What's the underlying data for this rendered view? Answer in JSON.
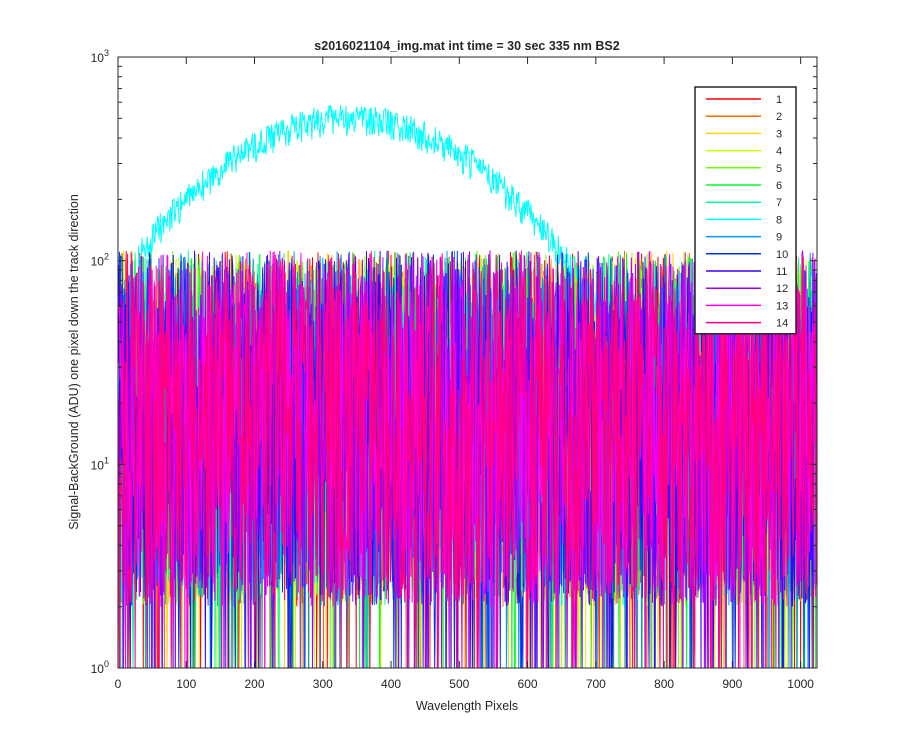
{
  "chart_data": {
    "type": "line",
    "title": "s2016021104_img.mat int time = 30 sec  335 nm BS2",
    "xlabel": "Wavelength Pixels",
    "ylabel": "Signal-BackGround (ADU) one pixel down the track direction",
    "xlim": [
      0,
      1024
    ],
    "ylim": [
      1,
      1000
    ],
    "yscale": "log",
    "x_ticks": [
      "0",
      "100",
      "200",
      "300",
      "400",
      "500",
      "600",
      "700",
      "800",
      "900",
      "1000"
    ],
    "y_ticks": [
      {
        "base": "10",
        "exp": "0"
      },
      {
        "base": "10",
        "exp": "1"
      },
      {
        "base": "10",
        "exp": "2"
      },
      {
        "base": "10",
        "exp": "3"
      }
    ],
    "grid": false,
    "legend_position": "top-right",
    "series": [
      {
        "name": "1",
        "color": "#ff0000",
        "profile": "noise"
      },
      {
        "name": "2",
        "color": "#ff6a00",
        "profile": "noise"
      },
      {
        "name": "3",
        "color": "#ffd400",
        "profile": "noise"
      },
      {
        "name": "4",
        "color": "#c8ff00",
        "profile": "noise"
      },
      {
        "name": "5",
        "color": "#6aff00",
        "profile": "noise"
      },
      {
        "name": "6",
        "color": "#00ff2a",
        "profile": "noise"
      },
      {
        "name": "7",
        "color": "#00ff9a",
        "profile": "noise"
      },
      {
        "name": "8",
        "color": "#00ffff",
        "profile": "peak",
        "peak_x": 340,
        "peak_value": 500,
        "floor_value": 18
      },
      {
        "name": "9",
        "color": "#0095ff",
        "profile": "noise"
      },
      {
        "name": "10",
        "color": "#0030ff",
        "profile": "noise"
      },
      {
        "name": "11",
        "color": "#3c00ff",
        "profile": "noise"
      },
      {
        "name": "12",
        "color": "#a000ff",
        "profile": "noise"
      },
      {
        "name": "13",
        "color": "#ff00e6",
        "profile": "noise"
      },
      {
        "name": "14",
        "color": "#ff0080",
        "profile": "noise"
      }
    ],
    "noise_series_range": [
      1,
      100
    ]
  }
}
